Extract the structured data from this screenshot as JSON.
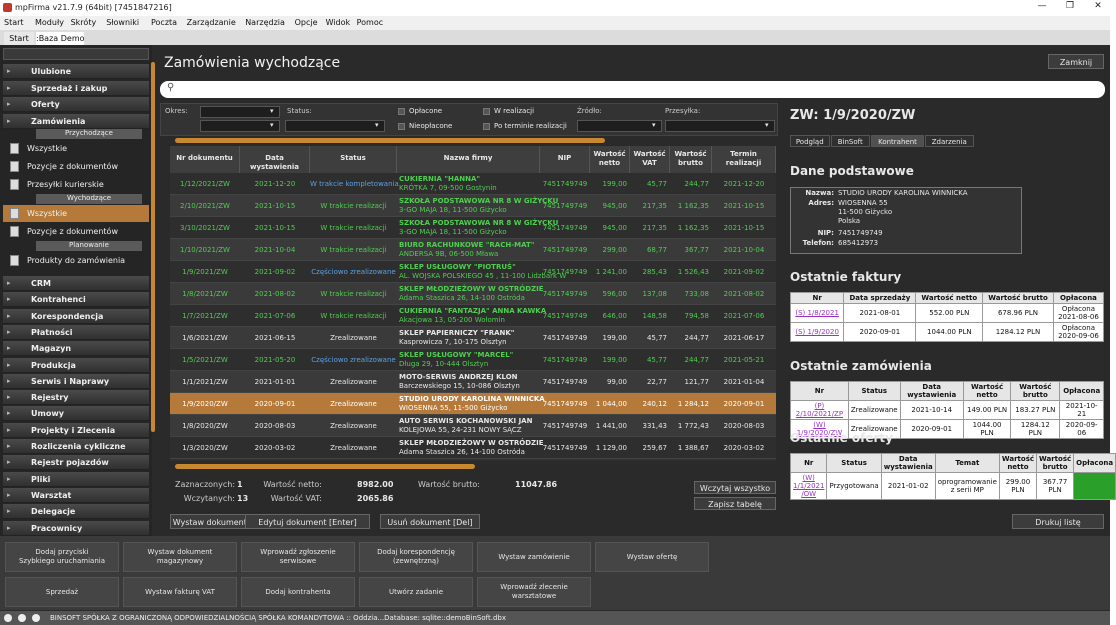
{
  "window": {
    "title": "mpFirma v21.7.9 (64bit) [7451847216]"
  },
  "menu": [
    "Start",
    "Moduły",
    "Skróty",
    "Słowniki",
    "Poczta",
    "Zarządzanie",
    "Narzędzia",
    "Opcje",
    "Widok",
    "Pomoc"
  ],
  "tabs": [
    "Start",
    ":Baza Demo"
  ],
  "sidebar": {
    "top": [
      "Ulubione",
      "Sprzedaż i zakup",
      "Oferty",
      "Zamówienia"
    ],
    "sections": [
      {
        "header": "Przychodzące",
        "items": [
          "Wszystkie",
          "Pozycje z dokumentów",
          "Przesyłki kurierskie"
        ]
      },
      {
        "header": "Wychodzące",
        "items": [
          "Wszystkie",
          "Pozycje z dokumentów"
        ]
      },
      {
        "header": "Planowanie",
        "items": [
          "Produkty do zamówienia"
        ]
      }
    ],
    "selected": [
      1,
      0
    ],
    "bottom": [
      "CRM",
      "Kontrahenci",
      "Korespondencja",
      "Płatności",
      "Magazyn",
      "Produkcja",
      "Serwis i Naprawy",
      "Rejestry",
      "Umowy",
      "Projekty i Zlecenia",
      "Rozliczenia cykliczne",
      "Rejestr pojazdów",
      "Pliki",
      "Warsztat",
      "Delegacje",
      "Pracownicy"
    ]
  },
  "page": {
    "title": "Zamówienia wychodzące",
    "close": "Zamknij",
    "print": "Drukuj listę"
  },
  "filters": {
    "labels": [
      "Okres:",
      "Status:",
      "Źródło:",
      "Przesyłka:"
    ],
    "checks": [
      "Opłacone",
      "Nieopłacone",
      "W realizacji",
      "Po terminie realizacji"
    ]
  },
  "table": {
    "headers": [
      "Nr dokumentu",
      "Data wystawienia",
      "Status",
      "Nazwa firmy",
      "NIP",
      "Wartość\nnetto",
      "Wartość\nVAT",
      "Wartość\nbrutto",
      "Termin\nrealizacji"
    ],
    "selected": 10,
    "rows": [
      {
        "color": "#4fcf4f",
        "status_color": "#5aa0e6",
        "cells": [
          "1/12/2021/ZW",
          "2021-12-20",
          "W trakcie kompletowania",
          [
            "CUKIERNIA \"HANNA\"",
            "KRÓTKA 7, 09-500 Gostynin"
          ],
          "7451749749",
          "199,00",
          "45,77",
          "244,77",
          "2021-12-20"
        ]
      },
      {
        "color": "#4fcf4f",
        "status_color": "#4fcf4f",
        "cells": [
          "2/10/2021/ZW",
          "2021-10-15",
          "W trakcie realizacji",
          [
            "SZKOŁA PODSTAWOWA NR 8 W GIŻYCKU",
            "3-GO MAJA 18, 11-500 Giżycko"
          ],
          "7451749749",
          "945,00",
          "217,35",
          "1 162,35",
          "2021-10-15"
        ]
      },
      {
        "color": "#4fcf4f",
        "status_color": "#4fcf4f",
        "cells": [
          "3/10/2021/ZW",
          "2021-10-15",
          "W trakcie realizacji",
          [
            "SZKOŁA PODSTAWOWA NR 8 W GIŻYCKU",
            "3-GO MAJA 18, 11-500 Giżycko"
          ],
          "7451749749",
          "945,00",
          "217,35",
          "1 162,35",
          "2021-10-15"
        ]
      },
      {
        "color": "#4fcf4f",
        "status_color": "#4fcf4f",
        "cells": [
          "1/10/2021/ZW",
          "2021-10-04",
          "W trakcie realizacji",
          [
            "BIURO RACHUNKOWE \"RACH-MAT\"",
            "ANDERSA 9B, 06-500 Mława"
          ],
          "7451749749",
          "299,00",
          "68,77",
          "367,77",
          "2021-10-04"
        ]
      },
      {
        "color": "#4fcf4f",
        "status_color": "#5aa0e6",
        "cells": [
          "1/9/2021/ZW",
          "2021-09-02",
          "Częściowo zrealizowane",
          [
            "SKLEP USŁUGOWY \"PIOTRUŚ\"",
            "AL. WOJSKA POLSKIEGO 45 , 11-100 Lidzbark W"
          ],
          "7451749749",
          "1 241,00",
          "285,43",
          "1 526,43",
          "2021-09-02"
        ]
      },
      {
        "color": "#4fcf4f",
        "status_color": "#4fcf4f",
        "cells": [
          "1/8/2021/ZW",
          "2021-08-02",
          "W trakcie realizacji",
          [
            "SKLEP MŁODZIEŻOWY W OSTRÓDZIE",
            "Adama Staszica 26, 14-100 Ostróda"
          ],
          "7451749749",
          "596,00",
          "137,08",
          "733,08",
          "2021-08-02"
        ]
      },
      {
        "color": "#4fcf4f",
        "status_color": "#4fcf4f",
        "cells": [
          "1/7/2021/ZW",
          "2021-07-06",
          "W trakcie realizacji",
          [
            "CUKIERNIA \"FANTAZJA\" ANNA KAWKA",
            "Akacjowa 13, 05-200 Wołomin"
          ],
          "7451749749",
          "646,00",
          "148,58",
          "794,58",
          "2021-07-06"
        ]
      },
      {
        "color": "#e8e8e8",
        "status_color": "#e8e8e8",
        "cells": [
          "1/6/2021/ZW",
          "2021-06-15",
          "Zrealizowane",
          [
            "SKLEP PAPIERNICZY \"FRANK\"",
            "Kasprowicza 7, 10-175 Olsztyn"
          ],
          "7451749749",
          "199,00",
          "45,77",
          "244,77",
          "2021-06-17"
        ]
      },
      {
        "color": "#4fcf4f",
        "status_color": "#5aa0e6",
        "cells": [
          "1/5/2021/ZW",
          "2021-05-20",
          "Częściowo zrealizowane",
          [
            "SKLEP USŁUGOWY \"MARCEL\"",
            "Długa 29, 10-444 Olsztyn"
          ],
          "7451749749",
          "199,00",
          "45,77",
          "244,77",
          "2021-05-21"
        ]
      },
      {
        "color": "#e8e8e8",
        "status_color": "#e8e8e8",
        "cells": [
          "1/1/2021/ZW",
          "2021-01-01",
          "Zrealizowane",
          [
            "MOTO-SERWIS ANDRZEJ KLON",
            "Barczewskiego 15, 10-086 Olsztyn"
          ],
          "7451749749",
          "99,00",
          "22,77",
          "121,77",
          "2021-01-04"
        ]
      },
      {
        "color": "#ffffff",
        "status_color": "#ffffff",
        "cells": [
          "1/9/2020/ZW",
          "2020-09-01",
          "Zrealizowane",
          [
            "STUDIO URODY KAROLINA WINNICKA",
            "WIOSENNA 55, 11-500 Giżycko"
          ],
          "7451749749",
          "1 044,00",
          "240,12",
          "1 284,12",
          "2020-09-01"
        ]
      },
      {
        "color": "#e8e8e8",
        "status_color": "#e8e8e8",
        "cells": [
          "1/8/2020/ZW",
          "2020-08-03",
          "Zrealizowane",
          [
            "AUTO SERWIS KOCHANOWSKI JAN",
            "KOLEJOWA 55, 24-231 NOWY SĄCZ"
          ],
          "7451749749",
          "1 441,00",
          "331,43",
          "1 772,43",
          "2020-08-03"
        ]
      },
      {
        "color": "#e8e8e8",
        "status_color": "#e8e8e8",
        "cells": [
          "1/3/2020/ZW",
          "2020-03-02",
          "Zrealizowane",
          [
            "SKLEP MŁODZIEŻOWY W OSTRÓDZIE",
            "Adama Staszica 26, 14-100 Ostróda"
          ],
          "7451749749",
          "1 129,00",
          "259,67",
          "1 388,67",
          "2020-03-02"
        ]
      }
    ]
  },
  "summary": [
    {
      "label": "Zaznaczonych:",
      "value": "1"
    },
    {
      "label": "Wczytanych:",
      "value": "13"
    },
    {
      "label": "Wartość netto:",
      "value": "8982.00"
    },
    {
      "label": "Wartość VAT:",
      "value": "2065.86"
    },
    {
      "label": "Wartość brutto:",
      "value": "11047.86"
    }
  ],
  "table_buttons": [
    "Wczytaj wszystko",
    "Zapisz tabelę"
  ],
  "actions": [
    "Wystaw dokument [Ins]",
    "Edytuj dokument [Enter]",
    "Usuń dokument [Del]"
  ],
  "detail": {
    "title": "ZW: 1/9/2020/ZW",
    "tabs": [
      "Podgląd",
      "BinSoft",
      "Kontrahent",
      "Zdarzenia"
    ],
    "active_tab": 2,
    "basic": {
      "title": "Dane podstawowe",
      "rows": [
        {
          "label": "Nazwa:",
          "value": "STUDIO URODY KAROLINA WINNICKA"
        },
        {
          "label": "Adres:",
          "value": "WIOSENNA 55\n11-500 Giżycko\nPolska"
        },
        {
          "label": "NIP:",
          "value": "7451749749"
        },
        {
          "label": "Telefon:",
          "value": "685412973"
        }
      ]
    },
    "invoices": {
      "title": "Ostatnie faktury",
      "headers": [
        "Nr",
        "Data sprzedaży",
        "Wartość netto",
        "Wartość brutto",
        "Opłacona"
      ],
      "rows": [
        [
          "(S) 1/8/2021",
          "2021-08-01",
          "552.00 PLN",
          "678.96 PLN",
          "Opłacona\n2021-08-06"
        ],
        [
          "(S) 1/9/2020",
          "2020-09-01",
          "1044.00 PLN",
          "1284.12 PLN",
          "Opłacona\n2020-09-06"
        ]
      ]
    },
    "orders": {
      "title": "Ostatnie zamówienia",
      "headers": [
        "Nr",
        "Status",
        "Data wystawienia",
        "Wartość netto",
        "Wartość brutto",
        "Opłacona"
      ],
      "rows": [
        [
          "(P) 2/10/2021/ZP",
          "Zrealizowane",
          "2021-10-14",
          "149.00 PLN",
          "183.27 PLN",
          "2021-10-21"
        ],
        [
          "(W) 1/9/2020/ZW",
          "Zrealizowane",
          "2020-09-01",
          "1044.00 PLN",
          "1284.12 PLN",
          "2020-09-06"
        ]
      ]
    },
    "offers": {
      "title": "Ostatnie oferty",
      "headers": [
        "Nr",
        "Status",
        "Data\nwystawienia",
        "Temat",
        "Wartość\nnetto",
        "Wartość\nbrutto",
        "Opłacona"
      ],
      "rows": [
        [
          "(W) 1/1/2021\n/OW",
          "Przygotowana",
          "2021-01-02",
          "oprogramowanie\nz serii MP",
          "299.00\nPLN",
          "367.77\nPLN"
        ]
      ]
    }
  },
  "quick": [
    [
      "Dodaj przyciski\nSzybkiego uruchamiania",
      "Wystaw dokument\nmagazynowy",
      "Wprowadź zgłoszenie\nserwisowe",
      "Dodaj korespondencję\n(zewnętrzną)",
      "Wystaw zamówienie",
      "Wystaw ofertę"
    ],
    [
      "Sprzedaż",
      "Wystaw fakturę VAT",
      "Dodaj kontrahenta",
      "Utwórz zadanie",
      "Wprowadź zlecenie\nwarsztatowe"
    ]
  ],
  "status": "BINSOFT SPÓŁKA Z OGRANICZONĄ ODPOWIEDZIALNOŚCIĄ SPÓŁKA KOMANDYTOWA :: Oddzia...Database: sqlite::demoBinSoft.dbx"
}
